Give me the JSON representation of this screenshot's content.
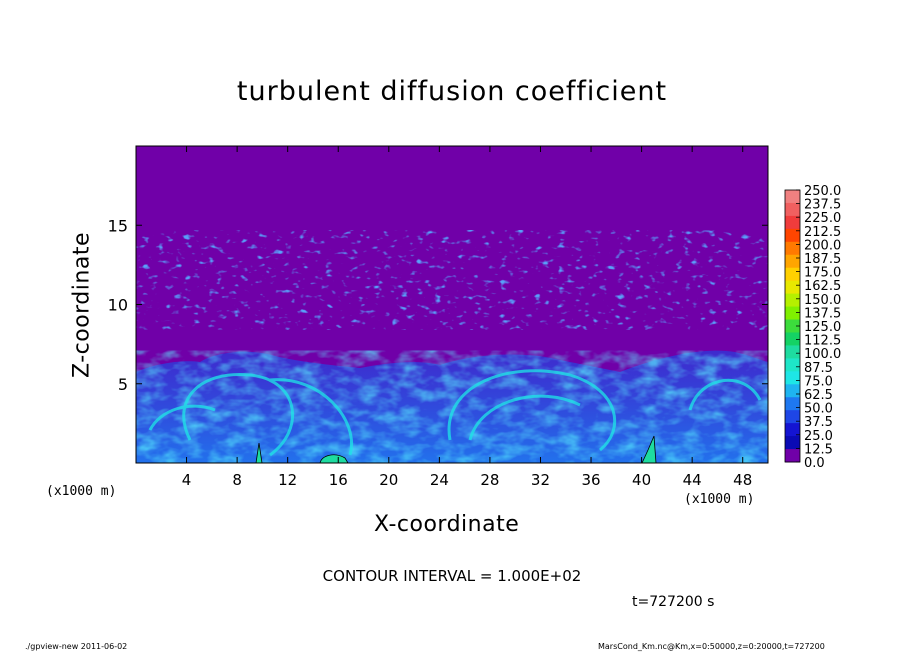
{
  "chart_data": {
    "type": "heatmap",
    "title": "turbulent diffusion coefficient",
    "xlabel": "X-coordinate",
    "ylabel": "Z-coordinate",
    "x_unit_label": "(x1000 m)",
    "xlim": [
      0,
      50
    ],
    "ylim": [
      0,
      20
    ],
    "x_ticks": [
      4,
      8,
      12,
      16,
      20,
      24,
      28,
      32,
      36,
      40,
      44,
      48
    ],
    "y_ticks": [
      5,
      10,
      15
    ],
    "colorbar_levels": [
      "250.0",
      "237.5",
      "225.0",
      "212.5",
      "200.0",
      "187.5",
      "175.0",
      "162.5",
      "150.0",
      "137.5",
      "125.0",
      "112.5",
      "100.0",
      "87.5",
      "75.0",
      "62.5",
      "50.0",
      "37.5",
      "25.0",
      "12.5",
      "0.0"
    ],
    "colorbar_colors": [
      "#f08080",
      "#f06060",
      "#f03c3c",
      "#ff4500",
      "#ff7a00",
      "#ffa500",
      "#ffd000",
      "#e8e800",
      "#b5f000",
      "#80f000",
      "#3cdc3c",
      "#14d264",
      "#1edca0",
      "#1ee6c8",
      "#1ee6e6",
      "#1eb4f0",
      "#1e78f0",
      "#1e46e6",
      "#1414d2",
      "#0a0ab4",
      "#7000a8"
    ],
    "background_color": "#7000a8",
    "contour_interval": "CONTOUR INTERVAL = 1.000E+02",
    "time_label": "t=727200 s"
  },
  "footer": {
    "left": "./gpview-new   2011-06-02",
    "right": "MarsCond_Km.nc@Km,x=0:50000,z=0:20000,t=727200"
  }
}
